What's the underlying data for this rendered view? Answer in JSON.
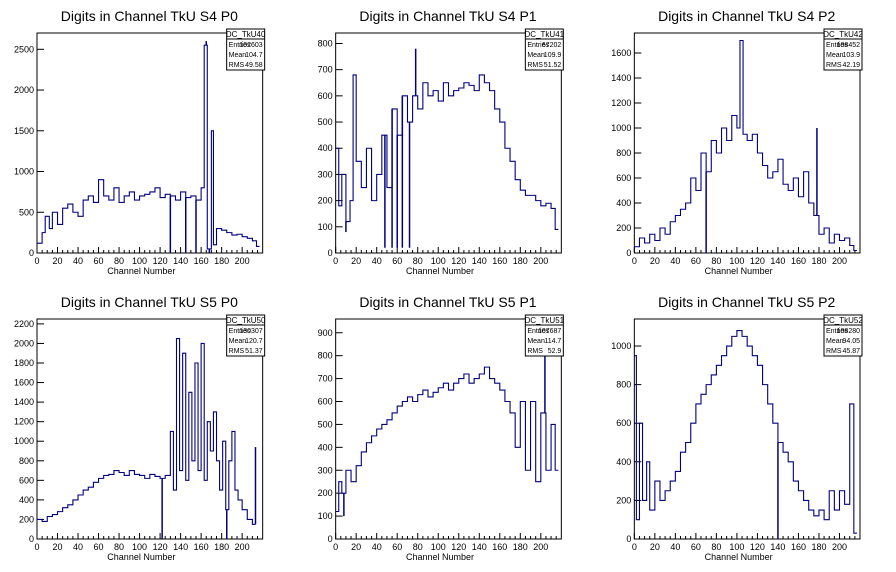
{
  "chart_data": [
    {
      "type": "histogram",
      "title": "Digits in Channel TkU S4 P0",
      "xlabel": "Channel Number",
      "xlim": [
        0,
        220
      ],
      "ylim": [
        0,
        2700
      ],
      "xticks": [
        0,
        20,
        40,
        60,
        80,
        100,
        120,
        140,
        160,
        180,
        200
      ],
      "yticks": [
        0,
        500,
        1000,
        1500,
        2000,
        2500
      ],
      "stats": {
        "name": "DC_TkU40",
        "entries": "102603",
        "mean": "104.7",
        "rms": "49.58"
      },
      "points": [
        [
          0,
          120
        ],
        [
          5,
          250
        ],
        [
          8,
          450
        ],
        [
          12,
          300
        ],
        [
          15,
          500
        ],
        [
          20,
          350
        ],
        [
          25,
          550
        ],
        [
          30,
          600
        ],
        [
          35,
          500
        ],
        [
          40,
          450
        ],
        [
          45,
          650
        ],
        [
          50,
          700
        ],
        [
          55,
          620
        ],
        [
          60,
          900
        ],
        [
          65,
          700
        ],
        [
          70,
          650
        ],
        [
          75,
          800
        ],
        [
          80,
          620
        ],
        [
          85,
          700
        ],
        [
          90,
          750
        ],
        [
          95,
          650
        ],
        [
          100,
          700
        ],
        [
          105,
          720
        ],
        [
          110,
          750
        ],
        [
          115,
          800
        ],
        [
          120,
          680
        ],
        [
          125,
          720
        ],
        [
          130,
          700
        ],
        [
          135,
          650
        ],
        [
          140,
          750
        ],
        [
          145,
          680
        ],
        [
          150,
          700
        ],
        [
          155,
          650
        ],
        [
          160,
          800
        ],
        [
          163,
          2550
        ],
        [
          166,
          50
        ],
        [
          170,
          1500
        ],
        [
          172,
          100
        ],
        [
          175,
          300
        ],
        [
          180,
          280
        ],
        [
          185,
          250
        ],
        [
          190,
          220
        ],
        [
          195,
          230
        ],
        [
          200,
          200
        ],
        [
          205,
          180
        ],
        [
          210,
          150
        ],
        [
          214,
          80
        ]
      ],
      "spikes": [
        [
          130,
          0
        ],
        [
          145,
          0
        ],
        [
          155,
          0
        ],
        [
          165,
          2600
        ],
        [
          168,
          0
        ]
      ]
    },
    {
      "type": "histogram",
      "title": "Digits in Channel TkU S4 P1",
      "xlabel": "Channel Number",
      "xlim": [
        0,
        220
      ],
      "ylim": [
        0,
        840
      ],
      "xticks": [
        0,
        20,
        40,
        60,
        80,
        100,
        120,
        140,
        160,
        180,
        200
      ],
      "yticks": [
        100,
        200,
        300,
        400,
        500,
        600,
        700,
        800
      ],
      "stats": {
        "name": "DC_TkU41",
        "entries": "67202",
        "mean": "109.9",
        "rms": "51.52"
      },
      "points": [
        [
          0,
          400
        ],
        [
          3,
          180
        ],
        [
          6,
          300
        ],
        [
          10,
          120
        ],
        [
          14,
          200
        ],
        [
          17,
          680
        ],
        [
          20,
          350
        ],
        [
          25,
          250
        ],
        [
          30,
          400
        ],
        [
          35,
          200
        ],
        [
          40,
          300
        ],
        [
          45,
          450
        ],
        [
          50,
          250
        ],
        [
          55,
          550
        ],
        [
          60,
          450
        ],
        [
          65,
          600
        ],
        [
          70,
          500
        ],
        [
          75,
          600
        ],
        [
          80,
          550
        ],
        [
          85,
          650
        ],
        [
          90,
          600
        ],
        [
          95,
          620
        ],
        [
          100,
          580
        ],
        [
          105,
          650
        ],
        [
          110,
          600
        ],
        [
          115,
          620
        ],
        [
          120,
          630
        ],
        [
          125,
          650
        ],
        [
          130,
          640
        ],
        [
          135,
          620
        ],
        [
          140,
          680
        ],
        [
          145,
          650
        ],
        [
          150,
          620
        ],
        [
          155,
          550
        ],
        [
          160,
          500
        ],
        [
          165,
          400
        ],
        [
          170,
          350
        ],
        [
          175,
          280
        ],
        [
          180,
          240
        ],
        [
          185,
          220
        ],
        [
          190,
          220
        ],
        [
          195,
          200
        ],
        [
          200,
          180
        ],
        [
          205,
          190
        ],
        [
          210,
          170
        ],
        [
          214,
          90
        ]
      ],
      "spikes": [
        [
          10,
          80
        ],
        [
          48,
          20
        ],
        [
          55,
          20
        ],
        [
          60,
          20
        ],
        [
          65,
          20
        ],
        [
          72,
          20
        ],
        [
          78,
          780
        ]
      ]
    },
    {
      "type": "histogram",
      "title": "Digits in Channel TkU S4 P2",
      "xlabel": "Channel Number",
      "xlim": [
        0,
        220
      ],
      "ylim": [
        0,
        1760
      ],
      "xticks": [
        0,
        20,
        40,
        60,
        80,
        100,
        120,
        140,
        160,
        180,
        200
      ],
      "yticks": [
        200,
        400,
        600,
        800,
        1000,
        1200,
        1400,
        1600
      ],
      "stats": {
        "name": "DC_TkU42",
        "entries": "108452",
        "mean": "103.9",
        "rms": "42.19"
      },
      "points": [
        [
          0,
          50
        ],
        [
          5,
          120
        ],
        [
          10,
          80
        ],
        [
          15,
          150
        ],
        [
          20,
          100
        ],
        [
          25,
          200
        ],
        [
          30,
          150
        ],
        [
          35,
          250
        ],
        [
          40,
          300
        ],
        [
          45,
          350
        ],
        [
          50,
          400
        ],
        [
          55,
          600
        ],
        [
          60,
          500
        ],
        [
          65,
          800
        ],
        [
          70,
          650
        ],
        [
          75,
          900
        ],
        [
          80,
          800
        ],
        [
          85,
          1000
        ],
        [
          90,
          900
        ],
        [
          95,
          1100
        ],
        [
          100,
          1000
        ],
        [
          103,
          1700
        ],
        [
          106,
          950
        ],
        [
          110,
          900
        ],
        [
          115,
          950
        ],
        [
          120,
          800
        ],
        [
          125,
          700
        ],
        [
          130,
          600
        ],
        [
          135,
          650
        ],
        [
          140,
          750
        ],
        [
          145,
          550
        ],
        [
          150,
          500
        ],
        [
          155,
          600
        ],
        [
          160,
          450
        ],
        [
          165,
          650
        ],
        [
          170,
          400
        ],
        [
          175,
          300
        ],
        [
          180,
          150
        ],
        [
          185,
          200
        ],
        [
          190,
          80
        ],
        [
          195,
          150
        ],
        [
          200,
          100
        ],
        [
          205,
          120
        ],
        [
          210,
          60
        ],
        [
          214,
          20
        ]
      ],
      "spikes": [
        [
          70,
          0
        ],
        [
          178,
          1000
        ]
      ]
    },
    {
      "type": "histogram",
      "title": "Digits in Channel TkU S5 P0",
      "xlabel": "Channel Number",
      "xlim": [
        0,
        220
      ],
      "ylim": [
        0,
        2250
      ],
      "xticks": [
        0,
        20,
        40,
        60,
        80,
        100,
        120,
        140,
        160,
        180,
        200
      ],
      "yticks": [
        200,
        400,
        600,
        800,
        1000,
        1200,
        1400,
        1600,
        1800,
        2000,
        2200
      ],
      "stats": {
        "name": "DC_TkU50",
        "entries": "130307",
        "mean": "120.7",
        "rms": "51.37"
      },
      "points": [
        [
          0,
          200
        ],
        [
          5,
          180
        ],
        [
          10,
          230
        ],
        [
          15,
          250
        ],
        [
          20,
          280
        ],
        [
          25,
          320
        ],
        [
          30,
          350
        ],
        [
          35,
          400
        ],
        [
          40,
          450
        ],
        [
          45,
          500
        ],
        [
          50,
          530
        ],
        [
          55,
          580
        ],
        [
          60,
          620
        ],
        [
          65,
          650
        ],
        [
          70,
          660
        ],
        [
          75,
          700
        ],
        [
          80,
          680
        ],
        [
          85,
          650
        ],
        [
          90,
          700
        ],
        [
          95,
          660
        ],
        [
          100,
          650
        ],
        [
          105,
          620
        ],
        [
          110,
          660
        ],
        [
          115,
          640
        ],
        [
          120,
          620
        ],
        [
          125,
          650
        ],
        [
          130,
          1100
        ],
        [
          133,
          500
        ],
        [
          136,
          2050
        ],
        [
          139,
          700
        ],
        [
          142,
          1900
        ],
        [
          145,
          600
        ],
        [
          148,
          1500
        ],
        [
          151,
          800
        ],
        [
          154,
          1800
        ],
        [
          157,
          700
        ],
        [
          160,
          2000
        ],
        [
          163,
          600
        ],
        [
          166,
          1200
        ],
        [
          169,
          900
        ],
        [
          172,
          1300
        ],
        [
          175,
          800
        ],
        [
          178,
          500
        ],
        [
          181,
          1000
        ],
        [
          184,
          300
        ],
        [
          187,
          800
        ],
        [
          190,
          1100
        ],
        [
          193,
          500
        ],
        [
          196,
          400
        ],
        [
          200,
          300
        ],
        [
          205,
          200
        ],
        [
          210,
          150
        ]
      ],
      "spikes": [
        [
          122,
          0
        ],
        [
          185,
          0
        ],
        [
          213,
          940
        ]
      ]
    },
    {
      "type": "histogram",
      "title": "Digits in Channel TkU S5 P1",
      "xlabel": "Channel Number",
      "xlim": [
        0,
        220
      ],
      "ylim": [
        0,
        960
      ],
      "xticks": [
        0,
        20,
        40,
        60,
        80,
        100,
        120,
        140,
        160,
        180,
        200
      ],
      "yticks": [
        100,
        200,
        300,
        400,
        500,
        600,
        700,
        800,
        900
      ],
      "stats": {
        "name": "DC_TkU51",
        "entries": "107687",
        "mean": "114.7",
        "rms": "52.9"
      },
      "points": [
        [
          0,
          120
        ],
        [
          3,
          250
        ],
        [
          6,
          200
        ],
        [
          10,
          300
        ],
        [
          15,
          250
        ],
        [
          20,
          320
        ],
        [
          25,
          380
        ],
        [
          30,
          420
        ],
        [
          35,
          450
        ],
        [
          40,
          480
        ],
        [
          45,
          500
        ],
        [
          50,
          520
        ],
        [
          55,
          550
        ],
        [
          60,
          580
        ],
        [
          65,
          600
        ],
        [
          70,
          620
        ],
        [
          75,
          600
        ],
        [
          80,
          630
        ],
        [
          85,
          650
        ],
        [
          90,
          620
        ],
        [
          95,
          640
        ],
        [
          100,
          660
        ],
        [
          105,
          680
        ],
        [
          110,
          650
        ],
        [
          115,
          680
        ],
        [
          120,
          700
        ],
        [
          125,
          720
        ],
        [
          130,
          680
        ],
        [
          135,
          700
        ],
        [
          140,
          720
        ],
        [
          145,
          750
        ],
        [
          150,
          700
        ],
        [
          155,
          680
        ],
        [
          160,
          650
        ],
        [
          165,
          600
        ],
        [
          170,
          550
        ],
        [
          175,
          400
        ],
        [
          180,
          600
        ],
        [
          185,
          300
        ],
        [
          190,
          600
        ],
        [
          195,
          250
        ],
        [
          200,
          550
        ],
        [
          205,
          300
        ],
        [
          210,
          500
        ],
        [
          214,
          300
        ]
      ],
      "spikes": [
        [
          8,
          100
        ],
        [
          204,
          900
        ]
      ]
    },
    {
      "type": "histogram",
      "title": "Digits in Channel TkU S5 P2",
      "xlabel": "Channel Number",
      "xlim": [
        0,
        220
      ],
      "ylim": [
        0,
        1140
      ],
      "xticks": [
        0,
        20,
        40,
        60,
        80,
        100,
        120,
        140,
        160,
        180,
        200
      ],
      "yticks": [
        200,
        400,
        600,
        800,
        1000
      ],
      "stats": {
        "name": "DC_TkU52",
        "entries": "108280",
        "mean": "94.05",
        "rms": "45.87"
      },
      "points": [
        [
          0,
          950
        ],
        [
          2,
          100
        ],
        [
          5,
          600
        ],
        [
          8,
          200
        ],
        [
          12,
          400
        ],
        [
          15,
          150
        ],
        [
          20,
          300
        ],
        [
          25,
          200
        ],
        [
          30,
          250
        ],
        [
          35,
          300
        ],
        [
          40,
          350
        ],
        [
          45,
          450
        ],
        [
          50,
          500
        ],
        [
          55,
          600
        ],
        [
          60,
          700
        ],
        [
          65,
          750
        ],
        [
          70,
          800
        ],
        [
          75,
          850
        ],
        [
          80,
          900
        ],
        [
          85,
          950
        ],
        [
          90,
          1000
        ],
        [
          95,
          1050
        ],
        [
          100,
          1080
        ],
        [
          105,
          1050
        ],
        [
          110,
          1000
        ],
        [
          115,
          950
        ],
        [
          120,
          900
        ],
        [
          125,
          800
        ],
        [
          130,
          700
        ],
        [
          135,
          600
        ],
        [
          140,
          500
        ],
        [
          145,
          450
        ],
        [
          150,
          400
        ],
        [
          155,
          300
        ],
        [
          160,
          250
        ],
        [
          165,
          200
        ],
        [
          170,
          150
        ],
        [
          175,
          120
        ],
        [
          180,
          150
        ],
        [
          185,
          100
        ],
        [
          190,
          250
        ],
        [
          195,
          150
        ],
        [
          200,
          250
        ],
        [
          205,
          180
        ],
        [
          210,
          700
        ],
        [
          214,
          30
        ]
      ],
      "spikes": [
        [
          140,
          0
        ]
      ]
    }
  ]
}
